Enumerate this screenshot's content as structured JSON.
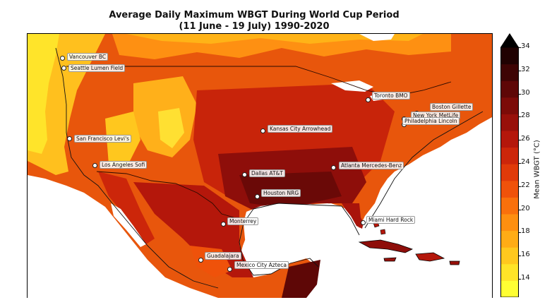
{
  "title": {
    "line1": "Average Daily Maximum WBGT During World Cup Period",
    "line2": "(11 June - 19 July) 1990-2020"
  },
  "colorbar": {
    "label": "Mean WBGT (°C)",
    "ticks": [
      "34",
      "32",
      "30",
      "28",
      "26",
      "24",
      "22",
      "20",
      "18",
      "16",
      "14"
    ],
    "colors": [
      "#ffff33",
      "#ffe428",
      "#ffc81e",
      "#ffac16",
      "#fe8f10",
      "#f9700c",
      "#ef520a",
      "#e03a09",
      "#cc260a",
      "#b4170b",
      "#98100a",
      "#7c0b08",
      "#5e0706",
      "#3e0404",
      "#200202"
    ],
    "range": [
      12,
      34
    ]
  },
  "venues": [
    {
      "name": "Vancouver BC"
    },
    {
      "name": "Seattle Lumen Field"
    },
    {
      "name": "San Francisco Levi's"
    },
    {
      "name": "Los Angeles Sofi"
    },
    {
      "name": "Kansas City Arrowhead"
    },
    {
      "name": "Dallas AT&T"
    },
    {
      "name": "Houston NRG"
    },
    {
      "name": "Atlanta Mercedes-Benz"
    },
    {
      "name": "Toronto BMO"
    },
    {
      "name": "Boston Gillette"
    },
    {
      "name": "New York MetLife"
    },
    {
      "name": "Philadelphia Lincoln"
    },
    {
      "name": "Miami Hard Rock"
    },
    {
      "name": "Monterrey"
    },
    {
      "name": "Guadalajara"
    },
    {
      "name": "Mexico City Azteca"
    }
  ]
}
